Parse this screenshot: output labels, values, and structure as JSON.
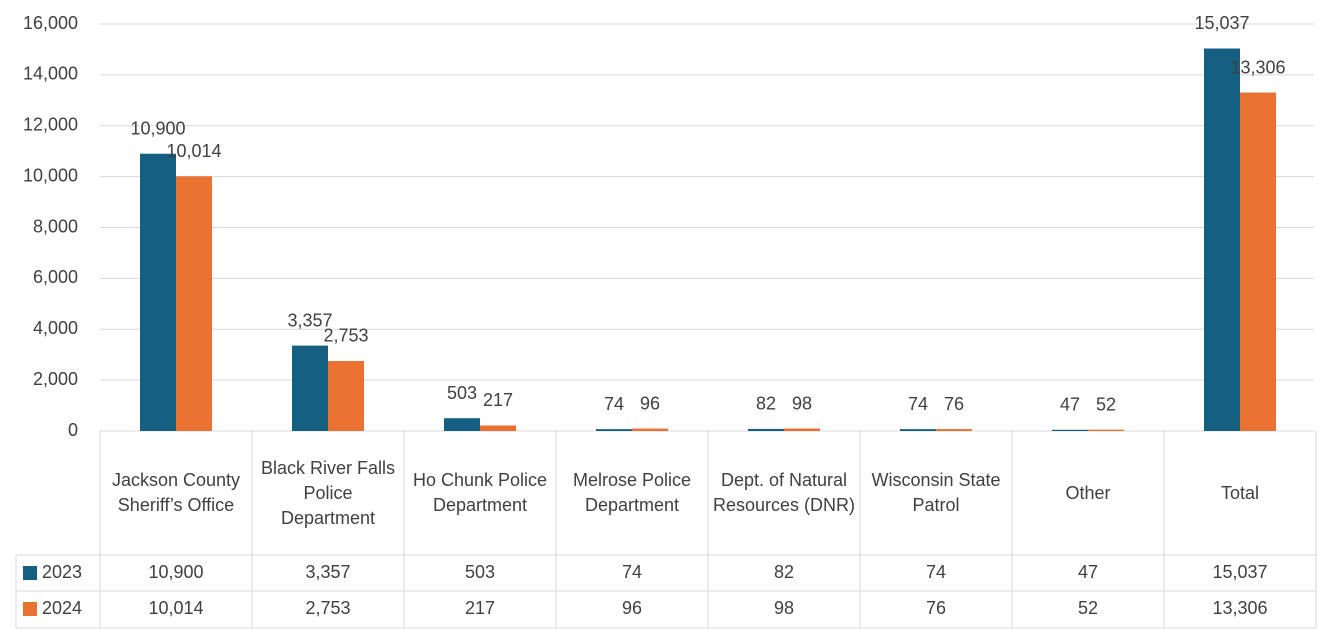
{
  "chart_data": {
    "type": "bar",
    "categories": [
      "Jackson County Sheriff’s Office",
      "Black River Falls Police Department",
      "Ho Chunk Police Department",
      "Melrose Police Department",
      "Dept. of Natural Resources (DNR)",
      "Wisconsin State Patrol",
      "Other",
      "Total"
    ],
    "series": [
      {
        "name": "2023",
        "color": "#156082",
        "values": [
          10900,
          3357,
          503,
          74,
          82,
          74,
          47,
          15037
        ],
        "value_labels": [
          "10,900",
          "3,357",
          "503",
          "74",
          "82",
          "74",
          "47",
          "15,037"
        ]
      },
      {
        "name": "2024",
        "color": "#e97132",
        "values": [
          10014,
          2753,
          217,
          96,
          98,
          76,
          52,
          13306
        ],
        "value_labels": [
          "10,014",
          "2,753",
          "217",
          "96",
          "98",
          "76",
          "52",
          "13,306"
        ]
      }
    ],
    "ylim": [
      0,
      16000
    ],
    "yticks": [
      0,
      {
        "value": 2000,
        "label": "2,000"
      },
      {
        "value": 4000,
        "label": "4,000"
      },
      {
        "value": 6000,
        "label": "6,000"
      },
      {
        "value": 8000,
        "label": "8,000"
      },
      {
        "value": 10000,
        "label": "10,000"
      },
      {
        "value": 12000,
        "label": "12,000"
      },
      {
        "value": 14000,
        "label": "14,000"
      },
      {
        "value": 16000,
        "label": "16,000"
      }
    ],
    "grid": true,
    "data_table": true
  }
}
